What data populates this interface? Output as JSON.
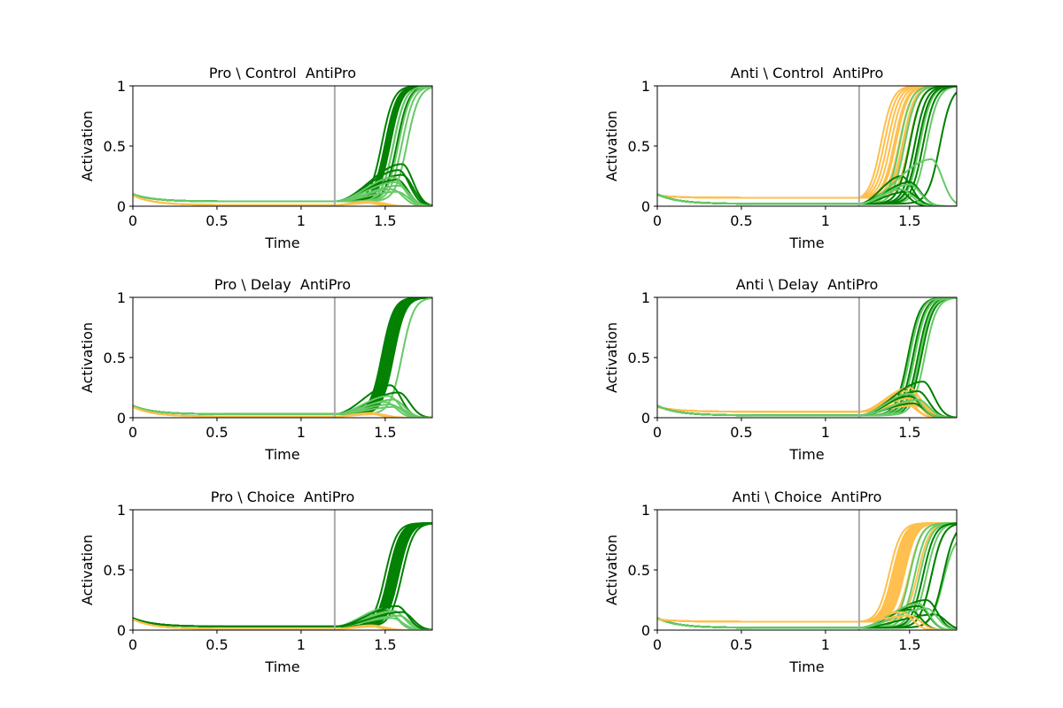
{
  "colors": {
    "dark_green": "#008000",
    "light_green": "#66c966",
    "orange": "#ffbf4d",
    "cue_line": "#aaaaaa",
    "axes": "#000000"
  },
  "chart_data": [
    {
      "type": "line",
      "title": "Pro \\ Control  AntiPro",
      "xlabel": "Time",
      "ylabel": "Activation",
      "xlim": [
        0,
        1.78
      ],
      "ylim": [
        0,
        1
      ],
      "xticks": [
        0,
        0.5,
        1,
        1.5
      ],
      "xtick_labels": [
        "0",
        "0.5",
        "1",
        "1.5"
      ],
      "yticks": [
        0,
        0.5,
        1
      ],
      "ytick_labels": [
        "0",
        "0.5",
        "1"
      ],
      "cue_time": 1.2,
      "baseline": {
        "green_start": 0.1,
        "green_level": 0.04,
        "orange_start": 0.09,
        "orange_level": 0.01
      },
      "groups": [
        {
          "color": "dark_green",
          "kind": "rise",
          "targets": [
            1,
            1,
            1,
            1,
            1,
            1,
            1
          ],
          "midpoints": [
            1.48,
            1.5,
            1.51,
            1.52,
            1.53,
            1.55,
            1.57
          ]
        },
        {
          "color": "light_green",
          "kind": "rise",
          "targets": [
            1,
            1,
            1,
            1
          ],
          "midpoints": [
            1.55,
            1.58,
            1.6,
            1.63
          ]
        },
        {
          "color": "dark_green",
          "kind": "bump",
          "peaks": [
            0.35,
            0.3,
            0.26,
            0.22
          ],
          "peak_times": [
            1.6,
            1.58,
            1.6,
            1.57
          ]
        },
        {
          "color": "light_green",
          "kind": "bump",
          "peaks": [
            0.24,
            0.2,
            0.17,
            0.14,
            0.12
          ],
          "peak_times": [
            1.55,
            1.56,
            1.58,
            1.54,
            1.57
          ]
        },
        {
          "color": "orange",
          "kind": "bump",
          "peaks": [
            0.04,
            0.035,
            0.03,
            0.03
          ],
          "peak_times": [
            1.4,
            1.42,
            1.38,
            1.45
          ]
        }
      ]
    },
    {
      "type": "line",
      "title": "Anti \\ Control  AntiPro",
      "xlabel": "Time",
      "ylabel": "Activation",
      "xlim": [
        0,
        1.78
      ],
      "ylim": [
        0,
        1
      ],
      "xticks": [
        0,
        0.5,
        1,
        1.5
      ],
      "xtick_labels": [
        "0",
        "0.5",
        "1",
        "1.5"
      ],
      "yticks": [
        0,
        0.5,
        1
      ],
      "ytick_labels": [
        "0",
        "0.5",
        "1"
      ],
      "cue_time": 1.2,
      "baseline": {
        "green_start": 0.1,
        "green_level": 0.02,
        "orange_start": 0.09,
        "orange_level": 0.07
      },
      "groups": [
        {
          "color": "orange",
          "kind": "rise",
          "targets": [
            1,
            1,
            1,
            1,
            1,
            1,
            1,
            1,
            1,
            1
          ],
          "midpoints": [
            1.33,
            1.35,
            1.37,
            1.39,
            1.41,
            1.42,
            1.44,
            1.46,
            1.47,
            1.5
          ]
        },
        {
          "color": "light_green",
          "kind": "rise",
          "targets": [
            1,
            1,
            1,
            1,
            1,
            1
          ],
          "midpoints": [
            1.44,
            1.47,
            1.5,
            1.53,
            1.56,
            1.6
          ]
        },
        {
          "color": "dark_green",
          "kind": "rise",
          "targets": [
            1,
            1,
            1,
            1,
            1
          ],
          "midpoints": [
            1.5,
            1.53,
            1.55,
            1.58,
            1.68
          ]
        },
        {
          "color": "dark_green",
          "kind": "bump",
          "peaks": [
            0.25,
            0.2,
            0.15,
            0.12
          ],
          "peak_times": [
            1.45,
            1.5,
            1.42,
            1.48
          ]
        },
        {
          "color": "light_green",
          "kind": "bump",
          "peaks": [
            0.39,
            0.18,
            0.14
          ],
          "peak_times": [
            1.63,
            1.5,
            1.45
          ]
        }
      ]
    },
    {
      "type": "line",
      "title": "Pro \\ Delay  AntiPro",
      "xlabel": "Time",
      "ylabel": "Activation",
      "xlim": [
        0,
        1.78
      ],
      "ylim": [
        0,
        1
      ],
      "xticks": [
        0,
        0.5,
        1,
        1.5
      ],
      "xtick_labels": [
        "0",
        "0.5",
        "1",
        "1.5"
      ],
      "yticks": [
        0,
        0.5,
        1
      ],
      "ytick_labels": [
        "0",
        "0.5",
        "1"
      ],
      "cue_time": 1.2,
      "baseline": {
        "green_start": 0.1,
        "green_level": 0.03,
        "orange_start": 0.09,
        "orange_level": 0.01
      },
      "groups": [
        {
          "color": "dark_green",
          "kind": "rise",
          "targets": [
            1,
            1,
            1,
            1,
            1,
            1,
            1,
            1
          ],
          "midpoints": [
            1.48,
            1.49,
            1.5,
            1.51,
            1.52,
            1.53,
            1.54,
            1.55
          ]
        },
        {
          "color": "light_green",
          "kind": "rise",
          "targets": [
            1
          ],
          "midpoints": [
            1.6
          ]
        },
        {
          "color": "dark_green",
          "kind": "bump",
          "peaks": [
            0.27,
            0.21
          ],
          "peak_times": [
            1.53,
            1.58
          ]
        },
        {
          "color": "light_green",
          "kind": "bump",
          "peaks": [
            0.18,
            0.15,
            0.13,
            0.11,
            0.09
          ],
          "peak_times": [
            1.52,
            1.55,
            1.5,
            1.53,
            1.56
          ]
        },
        {
          "color": "orange",
          "kind": "bump",
          "peaks": [
            0.04,
            0.035,
            0.03
          ],
          "peak_times": [
            1.42,
            1.4,
            1.45
          ]
        }
      ]
    },
    {
      "type": "line",
      "title": "Anti \\ Delay  AntiPro",
      "xlabel": "Time",
      "ylabel": "Activation",
      "xlim": [
        0,
        1.78
      ],
      "ylim": [
        0,
        1
      ],
      "xticks": [
        0,
        0.5,
        1,
        1.5
      ],
      "xtick_labels": [
        "0",
        "0.5",
        "1",
        "1.5"
      ],
      "yticks": [
        0,
        0.5,
        1
      ],
      "ytick_labels": [
        "0",
        "0.5",
        "1"
      ],
      "cue_time": 1.2,
      "baseline": {
        "green_start": 0.1,
        "green_level": 0.02,
        "orange_start": 0.09,
        "orange_level": 0.05
      },
      "groups": [
        {
          "color": "dark_green",
          "kind": "rise",
          "targets": [
            1,
            1,
            1,
            1,
            1,
            1
          ],
          "midpoints": [
            1.49,
            1.5,
            1.52,
            1.53,
            1.55,
            1.57
          ]
        },
        {
          "color": "light_green",
          "kind": "rise",
          "targets": [
            1,
            1,
            1,
            1
          ],
          "midpoints": [
            1.5,
            1.53,
            1.56,
            1.59
          ]
        },
        {
          "color": "orange",
          "kind": "bump",
          "peaks": [
            0.25,
            0.22,
            0.2,
            0.18,
            0.16,
            0.14,
            0.12,
            0.1
          ],
          "peak_times": [
            1.5,
            1.48,
            1.52,
            1.46,
            1.5,
            1.55,
            1.47,
            1.53
          ]
        },
        {
          "color": "dark_green",
          "kind": "bump",
          "peaks": [
            0.3,
            0.22,
            0.18,
            0.12
          ],
          "peak_times": [
            1.58,
            1.55,
            1.5,
            1.52
          ]
        },
        {
          "color": "light_green",
          "kind": "bump",
          "peaks": [
            0.2,
            0.15
          ],
          "peak_times": [
            1.5,
            1.55
          ]
        }
      ]
    },
    {
      "type": "line",
      "title": "Pro \\ Choice  AntiPro",
      "xlabel": "Time",
      "ylabel": "Activation",
      "xlim": [
        0,
        1.78
      ],
      "ylim": [
        0,
        1
      ],
      "xticks": [
        0,
        0.5,
        1,
        1.5
      ],
      "xtick_labels": [
        "0",
        "0.5",
        "1",
        "1.5"
      ],
      "yticks": [
        0,
        0.5,
        1
      ],
      "ytick_labels": [
        "0",
        "0.5",
        "1"
      ],
      "cue_time": 1.2,
      "baseline": {
        "green_start": 0.1,
        "green_level": 0.03,
        "orange_start": 0.09,
        "orange_level": 0.01
      },
      "groups": [
        {
          "color": "dark_green",
          "kind": "rise",
          "targets": [
            0.89,
            0.89,
            0.89,
            0.89,
            0.89,
            0.89,
            0.89,
            0.89,
            0.89
          ],
          "midpoints": [
            1.5,
            1.52,
            1.53,
            1.54,
            1.55,
            1.56,
            1.57,
            1.58,
            1.6
          ]
        },
        {
          "color": "light_green",
          "kind": "bump",
          "peaks": [
            0.18,
            0.16,
            0.14,
            0.12,
            0.1
          ],
          "peak_times": [
            1.5,
            1.55,
            1.52,
            1.58,
            1.54
          ]
        },
        {
          "color": "dark_green",
          "kind": "bump",
          "peaks": [
            0.2,
            0.15
          ],
          "peak_times": [
            1.57,
            1.6
          ]
        },
        {
          "color": "orange",
          "kind": "bump",
          "peaks": [
            0.04,
            0.035,
            0.03
          ],
          "peak_times": [
            1.42,
            1.4,
            1.45
          ]
        }
      ]
    },
    {
      "type": "line",
      "title": "Anti \\ Choice  AntiPro",
      "xlabel": "Time",
      "ylabel": "Activation",
      "xlim": [
        0,
        1.78
      ],
      "ylim": [
        0,
        1
      ],
      "xticks": [
        0,
        0.5,
        1,
        1.5
      ],
      "xtick_labels": [
        "0",
        "0.5",
        "1",
        "1.5"
      ],
      "yticks": [
        0,
        0.5,
        1
      ],
      "ytick_labels": [
        "0",
        "0.5",
        "1"
      ],
      "cue_time": 1.2,
      "baseline": {
        "green_start": 0.1,
        "green_level": 0.02,
        "orange_start": 0.09,
        "orange_level": 0.07
      },
      "groups": [
        {
          "color": "orange",
          "kind": "rise",
          "targets": [
            0.89,
            0.89,
            0.89,
            0.89,
            0.89,
            0.89,
            0.89,
            0.89,
            0.89,
            0.89,
            0.89
          ],
          "midpoints": [
            1.38,
            1.4,
            1.41,
            1.42,
            1.43,
            1.44,
            1.45,
            1.46,
            1.47,
            1.5,
            1.55
          ]
        },
        {
          "color": "light_green",
          "kind": "rise",
          "targets": [
            0.89,
            0.89,
            0.89,
            0.89,
            0.89,
            0.8
          ],
          "midpoints": [
            1.5,
            1.53,
            1.56,
            1.6,
            1.63,
            1.7
          ]
        },
        {
          "color": "dark_green",
          "kind": "rise",
          "targets": [
            0.89,
            0.89,
            0.89
          ],
          "midpoints": [
            1.58,
            1.63,
            1.7
          ]
        },
        {
          "color": "dark_green",
          "kind": "bump",
          "peaks": [
            0.25,
            0.2,
            0.17,
            0.13
          ],
          "peak_times": [
            1.6,
            1.55,
            1.5,
            1.65
          ]
        },
        {
          "color": "light_green",
          "kind": "bump",
          "peaks": [
            0.22,
            0.18
          ],
          "peak_times": [
            1.55,
            1.6
          ]
        },
        {
          "color": "orange",
          "kind": "bump",
          "peaks": [
            0.15,
            0.12
          ],
          "peak_times": [
            1.45,
            1.5
          ]
        }
      ]
    }
  ]
}
